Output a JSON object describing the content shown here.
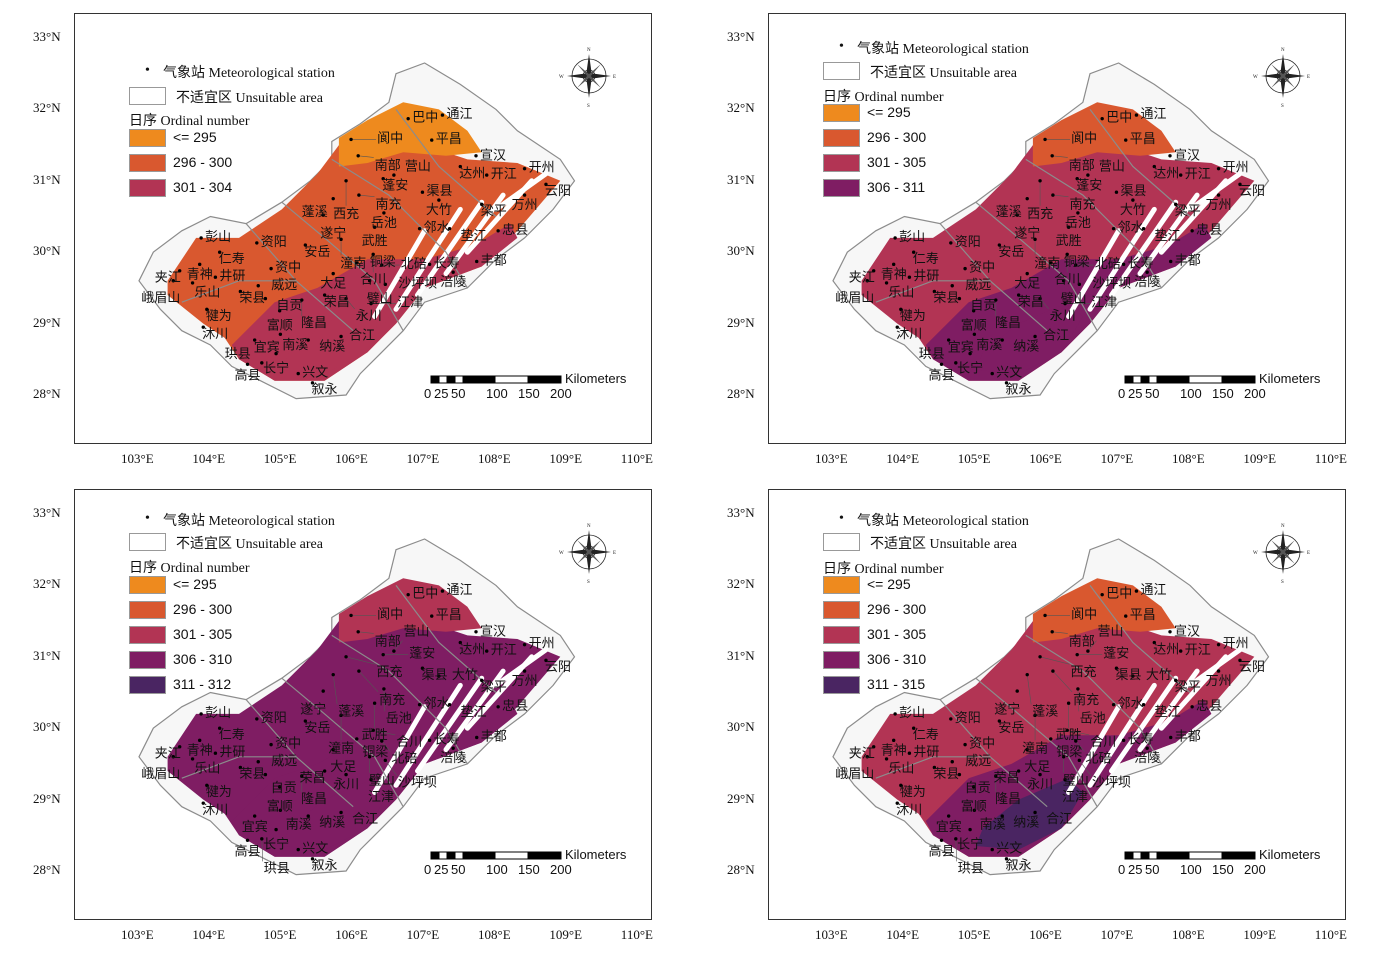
{
  "legend": {
    "station": "气象站 Meteorological station",
    "unsuitable": "不适宜区 Unsuitable area",
    "ordinal_title": "日序 Ordinal number"
  },
  "class_colors": {
    "c295": "#EE8A1E",
    "c300": "#D9582F",
    "c305": "#B23454",
    "c310": "#7F1D63",
    "c315": "#4A2562",
    "unsuitable": "#F7F7F7",
    "boundary": "#8C8C8C"
  },
  "axes": {
    "lon_ticks": [
      "103°E",
      "104°E",
      "105°E",
      "106°E",
      "107°E",
      "108°E",
      "109°E",
      "110°E"
    ],
    "lat_ticks": [
      "33°N",
      "32°N",
      "31°N",
      "30°N",
      "29°N",
      "28°N"
    ]
  },
  "scale_bar": {
    "unit": "Kilometers",
    "labels": [
      "0",
      "25",
      "50",
      "100",
      "150",
      "200"
    ]
  },
  "compass": {
    "n": "N",
    "s": "S",
    "e": "E",
    "w": "W"
  },
  "panels": [
    {
      "classes": [
        {
          "label": "<= 295",
          "color": "#EE8A1E"
        },
        {
          "label": "296 - 300",
          "color": "#D9582F"
        },
        {
          "label": "301 - 304",
          "color": "#B23454"
        }
      ],
      "zone_class": {
        "north": 0,
        "middle": 1,
        "south": 2,
        "deep": 2
      }
    },
    {
      "classes": [
        {
          "label": "<= 295",
          "color": "#EE8A1E"
        },
        {
          "label": "296 - 300",
          "color": "#D9582F"
        },
        {
          "label": "301 - 305",
          "color": "#B23454"
        },
        {
          "label": "306 - 311",
          "color": "#7F1D63"
        }
      ],
      "zone_class": {
        "north": 1,
        "middle": 2,
        "south": 3,
        "deep": 3
      }
    },
    {
      "classes": [
        {
          "label": "<= 295",
          "color": "#EE8A1E"
        },
        {
          "label": "296 - 300",
          "color": "#D9582F"
        },
        {
          "label": "301 - 305",
          "color": "#B23454"
        },
        {
          "label": "306 - 310",
          "color": "#7F1D63"
        },
        {
          "label": "311 - 312",
          "color": "#4A2562"
        }
      ],
      "zone_class": {
        "north": 2,
        "middle": 3,
        "south": 3,
        "deep": 3
      }
    },
    {
      "classes": [
        {
          "label": "<= 295",
          "color": "#EE8A1E"
        },
        {
          "label": "296 - 300",
          "color": "#D9582F"
        },
        {
          "label": "301 - 305",
          "color": "#B23454"
        },
        {
          "label": "306 - 310",
          "color": "#7F1D63"
        },
        {
          "label": "311 - 315",
          "color": "#4A2562"
        }
      ],
      "zone_class": {
        "north": 1,
        "middle": 2,
        "south": 3,
        "deep": 4
      }
    }
  ],
  "stations": [
    {
      "name": "通江",
      "lon": 107.25,
      "lat": 31.92
    },
    {
      "name": "巴中",
      "lon": 106.77,
      "lat": 31.87
    },
    {
      "name": "平昌",
      "lon": 107.1,
      "lat": 31.57
    },
    {
      "name": "阆中",
      "lon": 105.97,
      "lat": 31.58
    },
    {
      "name": "南部",
      "lon": 106.07,
      "lat": 31.35
    },
    {
      "name": "宣汉",
      "lon": 107.72,
      "lat": 31.35
    },
    {
      "name": "达州",
      "lon": 107.5,
      "lat": 31.2
    },
    {
      "name": "开江",
      "lon": 107.87,
      "lat": 31.08
    },
    {
      "name": "开州",
      "lon": 108.4,
      "lat": 31.17
    },
    {
      "name": "云阳",
      "lon": 108.7,
      "lat": 30.95
    },
    {
      "name": "万州",
      "lon": 108.4,
      "lat": 30.8
    },
    {
      "name": "西充",
      "lon": 105.9,
      "lat": 31.0
    },
    {
      "name": "蓬安",
      "lon": 106.42,
      "lat": 31.03
    },
    {
      "name": "营山",
      "lon": 106.57,
      "lat": 31.08
    },
    {
      "name": "南充",
      "lon": 106.08,
      "lat": 30.8
    },
    {
      "name": "蓬溪",
      "lon": 105.72,
      "lat": 30.75
    },
    {
      "name": "渠县",
      "lon": 106.97,
      "lat": 30.84
    },
    {
      "name": "大竹",
      "lon": 107.2,
      "lat": 30.73
    },
    {
      "name": "梁平",
      "lon": 107.8,
      "lat": 30.67
    },
    {
      "name": "遂宁",
      "lon": 105.58,
      "lat": 30.52
    },
    {
      "name": "岳池",
      "lon": 106.43,
      "lat": 30.55
    },
    {
      "name": "武胜",
      "lon": 106.3,
      "lat": 30.35
    },
    {
      "name": "邻水",
      "lon": 106.93,
      "lat": 30.33
    },
    {
      "name": "垫江",
      "lon": 107.35,
      "lat": 30.33
    },
    {
      "name": "忠县",
      "lon": 108.03,
      "lat": 30.3
    },
    {
      "name": "安岳",
      "lon": 105.33,
      "lat": 30.1
    },
    {
      "name": "潼南",
      "lon": 105.83,
      "lat": 30.18
    },
    {
      "name": "彭山",
      "lon": 103.87,
      "lat": 30.2
    },
    {
      "name": "仁寿",
      "lon": 104.13,
      "lat": 30.0
    },
    {
      "name": "资阳",
      "lon": 104.65,
      "lat": 30.13
    },
    {
      "name": "铜梁",
      "lon": 106.05,
      "lat": 29.85
    },
    {
      "name": "合川",
      "lon": 106.28,
      "lat": 29.97
    },
    {
      "name": "北碚",
      "lon": 106.4,
      "lat": 29.82
    },
    {
      "name": "长寿",
      "lon": 107.07,
      "lat": 29.83
    },
    {
      "name": "丰都",
      "lon": 107.73,
      "lat": 29.87
    },
    {
      "name": "青神",
      "lon": 103.85,
      "lat": 29.83
    },
    {
      "name": "夹江",
      "lon": 103.57,
      "lat": 29.74
    },
    {
      "name": "井研",
      "lon": 104.07,
      "lat": 29.65
    },
    {
      "name": "资中",
      "lon": 104.85,
      "lat": 29.77
    },
    {
      "name": "大足",
      "lon": 105.72,
      "lat": 29.7
    },
    {
      "name": "乐山",
      "lon": 103.75,
      "lat": 29.57
    },
    {
      "name": "涪陵",
      "lon": 107.4,
      "lat": 29.72
    },
    {
      "name": "璧山",
      "lon": 106.23,
      "lat": 29.6
    },
    {
      "name": "沙坪坝",
      "lon": 106.45,
      "lat": 29.55
    },
    {
      "name": "峨眉山",
      "lon": 103.48,
      "lat": 29.6
    },
    {
      "name": "荣县",
      "lon": 104.42,
      "lat": 29.45
    },
    {
      "name": "威远",
      "lon": 104.67,
      "lat": 29.53
    },
    {
      "name": "荣昌",
      "lon": 105.6,
      "lat": 29.4
    },
    {
      "name": "永川",
      "lon": 105.9,
      "lat": 29.35
    },
    {
      "name": "自贡",
      "lon": 104.77,
      "lat": 29.35
    },
    {
      "name": "隆昌",
      "lon": 105.28,
      "lat": 29.33
    },
    {
      "name": "江津",
      "lon": 106.25,
      "lat": 29.28
    },
    {
      "name": "犍为",
      "lon": 103.95,
      "lat": 29.2
    },
    {
      "name": "富顺",
      "lon": 104.97,
      "lat": 29.18
    },
    {
      "name": "沐川",
      "lon": 103.9,
      "lat": 28.95
    },
    {
      "name": "宜宾",
      "lon": 104.62,
      "lat": 28.77
    },
    {
      "name": "南溪",
      "lon": 104.98,
      "lat": 28.85
    },
    {
      "name": "纳溪",
      "lon": 105.37,
      "lat": 28.77
    },
    {
      "name": "合江",
      "lon": 105.83,
      "lat": 28.82
    },
    {
      "name": "长宁",
      "lon": 104.92,
      "lat": 28.58
    },
    {
      "name": "高县",
      "lon": 104.52,
      "lat": 28.43
    },
    {
      "name": "兴文",
      "lon": 105.23,
      "lat": 28.3
    },
    {
      "name": "珙县",
      "lon": 104.72,
      "lat": 28.45
    },
    {
      "name": "叙永",
      "lon": 105.43,
      "lat": 28.17
    }
  ]
}
